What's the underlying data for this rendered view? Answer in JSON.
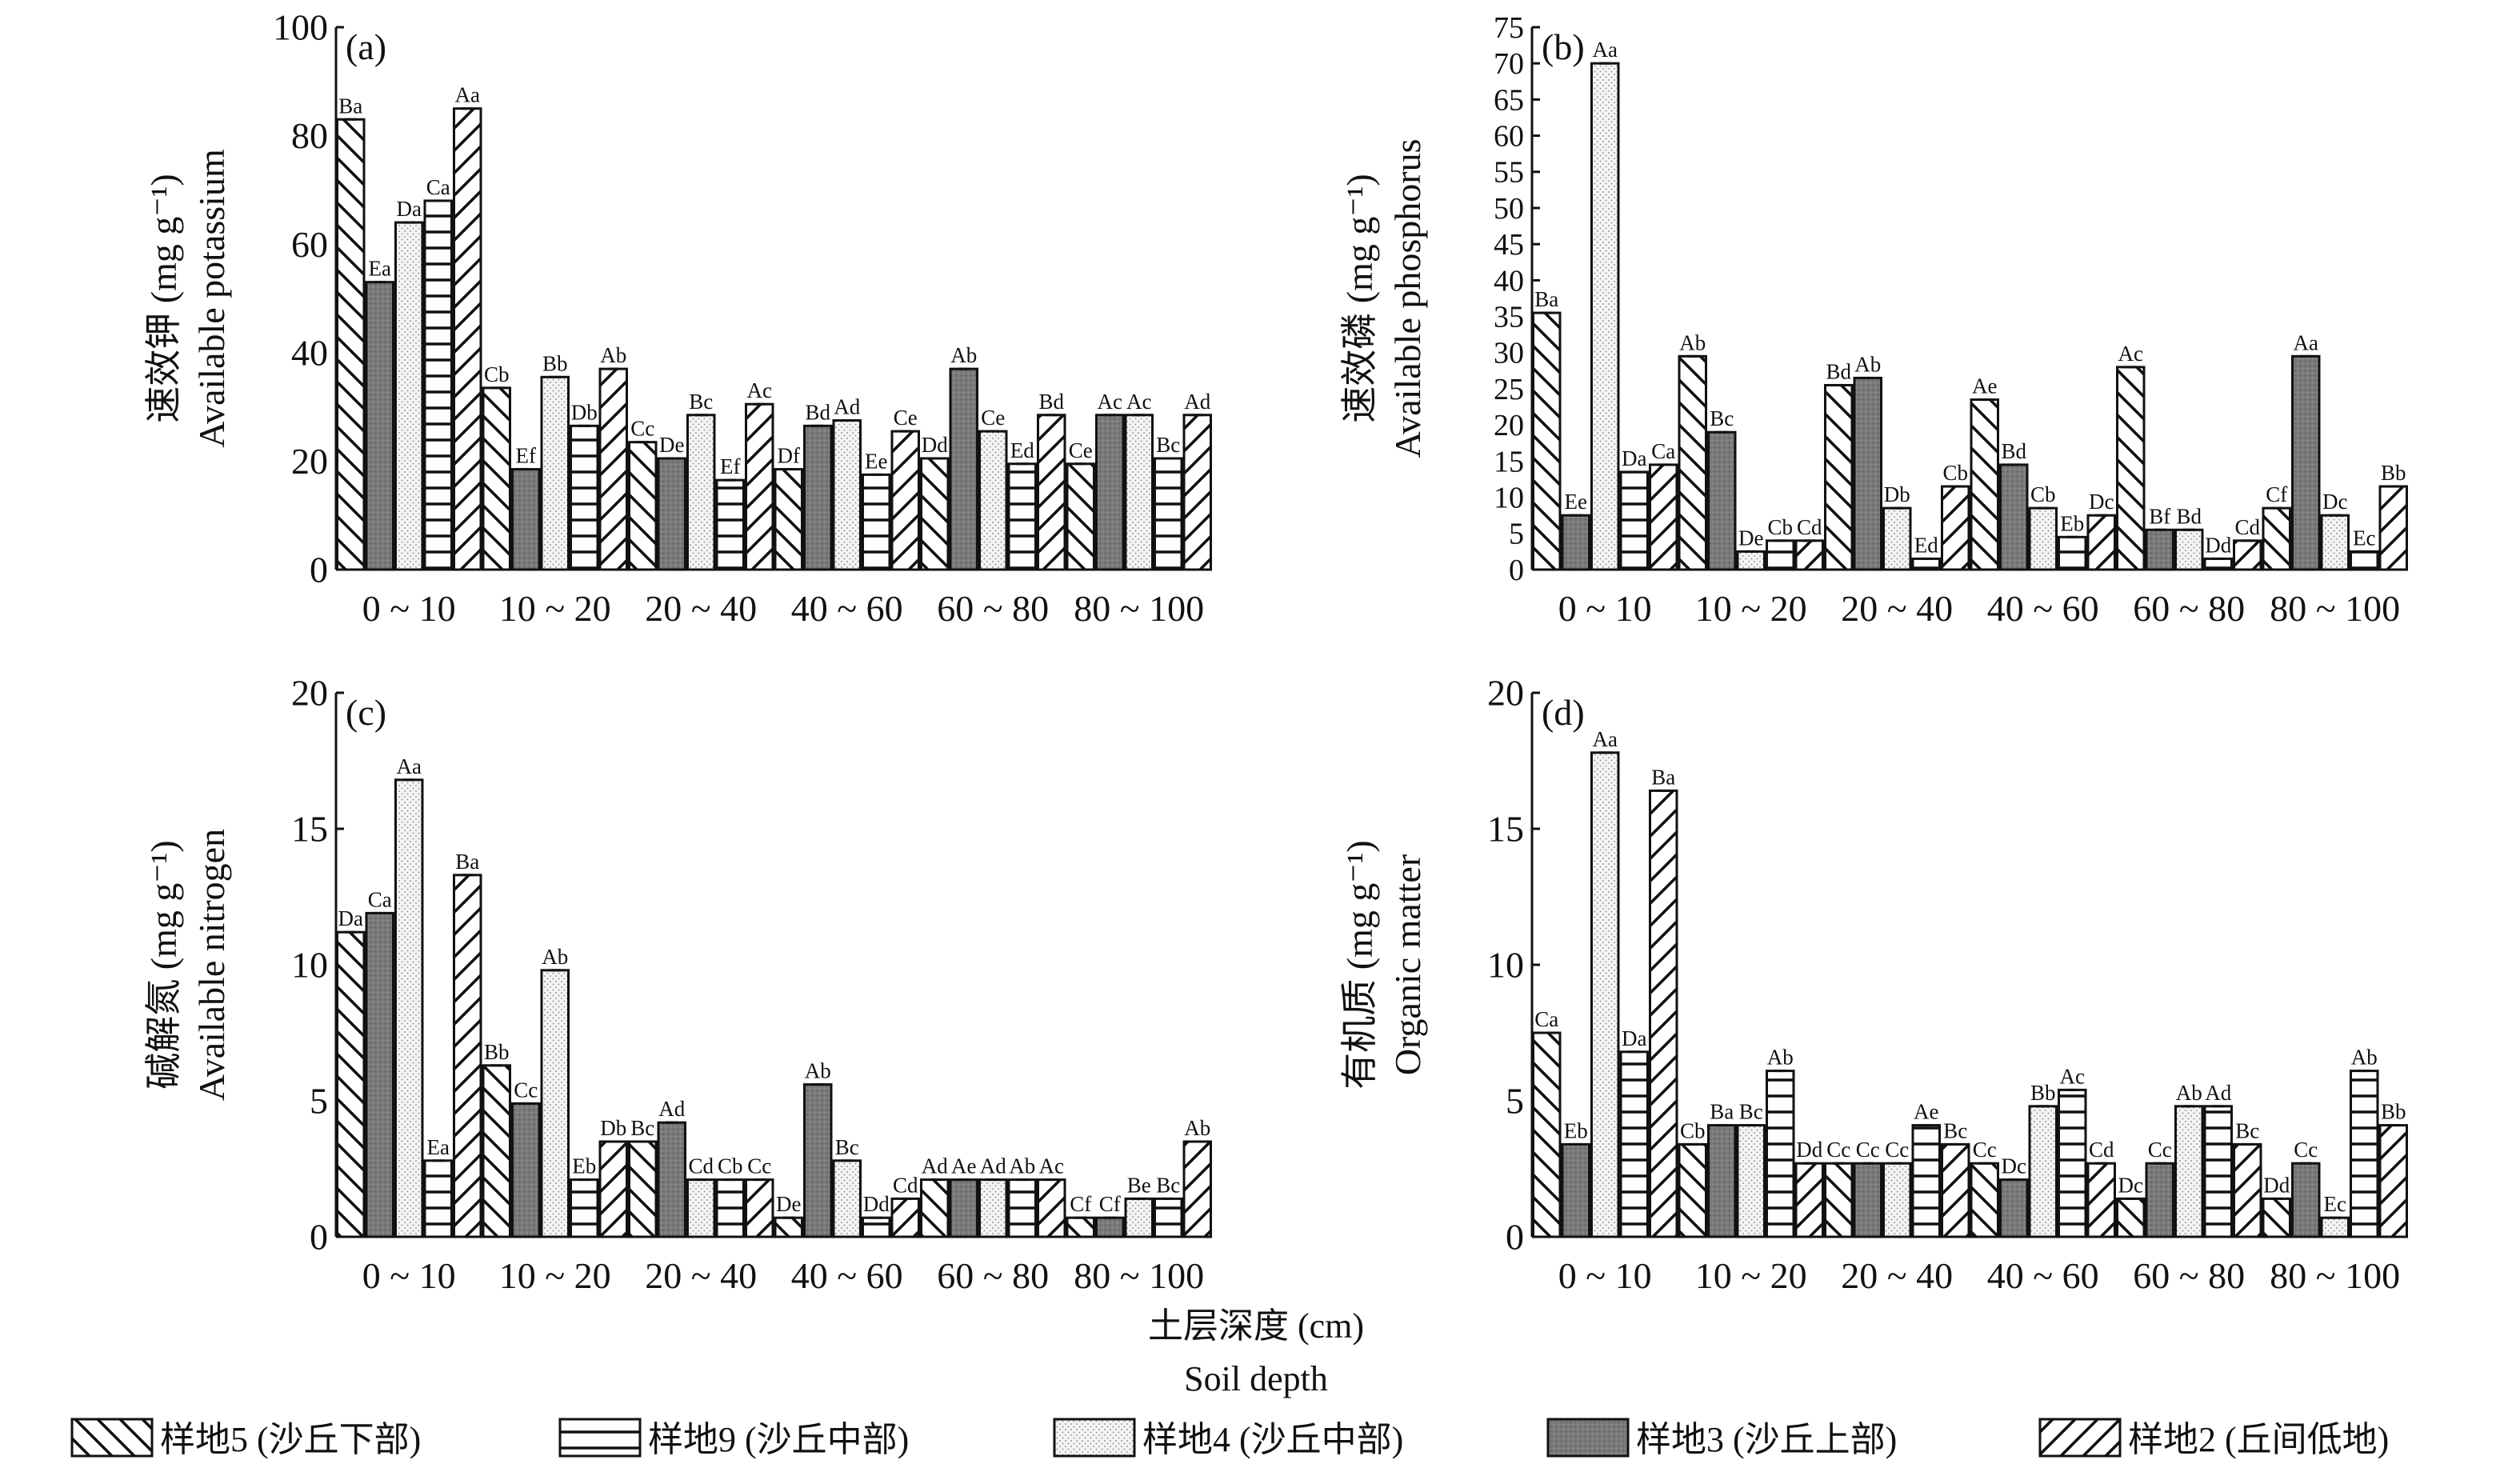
{
  "series_legend": [
    {
      "label": "样地5 (沙丘下部)",
      "pattern": "diagBack"
    },
    {
      "label": "样地9 (沙丘中部)",
      "pattern": "horiz"
    },
    {
      "label": "样地4 (沙丘中部)",
      "pattern": "dots"
    },
    {
      "label": "样地3 (沙丘上部)",
      "pattern": "dark"
    },
    {
      "label": "样地2 (丘间低地)",
      "pattern": "diagFwd"
    }
  ],
  "series_order": [
    "样地5",
    "样地3",
    "样地4",
    "样地9",
    "样地2"
  ],
  "shared_xlabel": {
    "zh": "土层深度 (cm)",
    "en": "Soil depth"
  },
  "colors": {
    "axis": "#111111",
    "dark_fill": "#7a7a7a",
    "dot_fill": "#f2f2f2",
    "background": "#ffffff"
  },
  "chart_data": [
    {
      "type": "bar",
      "panel": "(a)",
      "ylabel_zh": "速效钾 (mg g⁻¹)",
      "ylabel_en": "Available potassium",
      "ylim": [
        0,
        100
      ],
      "yticks": [
        0,
        20,
        40,
        60,
        80,
        100
      ],
      "categories": [
        "0 ~ 10",
        "10 ~ 20",
        "20 ~ 40",
        "40 ~ 60",
        "60 ~ 80",
        "80 ~ 100"
      ],
      "series": [
        {
          "values": [
            83,
            33.5,
            23.5,
            18.5,
            20.5,
            19.5
          ],
          "labels": [
            "Ba",
            "Cb",
            "Cc",
            "Df",
            "Dd",
            "Ce"
          ]
        },
        {
          "values": [
            53,
            18.5,
            20.5,
            26.5,
            37,
            28.5
          ],
          "labels": [
            "Ea",
            "Ef",
            "De",
            "Bd",
            "Ab",
            "Ac"
          ]
        },
        {
          "values": [
            64,
            35.5,
            28.5,
            27.5,
            25.5,
            28.5
          ],
          "labels": [
            "Da",
            "Bb",
            "Bc",
            "Ad",
            "Ce",
            "Ac"
          ]
        },
        {
          "values": [
            68,
            26.5,
            16.5,
            17.5,
            19.5,
            20.5
          ],
          "labels": [
            "Ca",
            "Db",
            "Ef",
            "Ee",
            "Ed",
            "Bc"
          ]
        },
        {
          "values": [
            85,
            37,
            30.5,
            25.5,
            28.5,
            28.5
          ],
          "labels": [
            "Aa",
            "Ab",
            "Ac",
            "Ce",
            "Bd",
            "Ad"
          ]
        }
      ]
    },
    {
      "type": "bar",
      "panel": "(b)",
      "ylabel_zh": "速效磷 (mg g⁻¹)",
      "ylabel_en": "Available phosphorus",
      "ylim": [
        0,
        75
      ],
      "yticks": [
        0,
        5,
        10,
        15,
        20,
        25,
        30,
        35,
        40,
        45,
        50,
        55,
        60,
        65,
        70,
        75
      ],
      "categories": [
        "0 ~ 10",
        "10 ~ 20",
        "20 ~ 40",
        "40 ~ 60",
        "60 ~ 80",
        "80 ~ 100"
      ],
      "series": [
        {
          "values": [
            35.5,
            29.5,
            25.5,
            23.5,
            28,
            8.5
          ],
          "labels": [
            "Ba",
            "Ab",
            "Bd",
            "Ae",
            "Ac",
            "Cf"
          ]
        },
        {
          "values": [
            7.5,
            19,
            26.5,
            14.5,
            5.5,
            29.5
          ],
          "labels": [
            "Ee",
            "Bc",
            "Ab",
            "Bd",
            "Bf",
            "Aa"
          ]
        },
        {
          "values": [
            70,
            2.5,
            8.5,
            8.5,
            5.5,
            7.5
          ],
          "labels": [
            "Aa",
            "De",
            "Db",
            "Cb",
            "Bd",
            "Dc"
          ]
        },
        {
          "values": [
            13.5,
            4,
            1.5,
            4.5,
            1.5,
            2.5
          ],
          "labels": [
            "Da",
            "Cb",
            "Ed",
            "Eb",
            "Dd",
            "Ec"
          ]
        },
        {
          "values": [
            14.5,
            4,
            11.5,
            7.5,
            4,
            11.5
          ],
          "labels": [
            "Ca",
            "Cd",
            "Cb",
            "Dc",
            "Cd",
            "Bb"
          ]
        }
      ]
    },
    {
      "type": "bar",
      "panel": "(c)",
      "ylabel_zh": "碱解氮 (mg g⁻¹)",
      "ylabel_en": "Available nitrogen",
      "ylim": [
        0,
        20
      ],
      "yticks": [
        0,
        5,
        10,
        15,
        20
      ],
      "categories": [
        "0 ~ 10",
        "10 ~ 20",
        "20 ~ 40",
        "40 ~ 60",
        "60 ~ 80",
        "80 ~ 100"
      ],
      "series": [
        {
          "values": [
            11.2,
            6.3,
            3.5,
            0.7,
            2.1,
            0.7
          ],
          "labels": [
            "Da",
            "Bb",
            "Bc",
            "De",
            "Ad",
            "Cf"
          ]
        },
        {
          "values": [
            11.9,
            4.9,
            4.2,
            5.6,
            2.1,
            0.7
          ],
          "labels": [
            "Ca",
            "Cc",
            "Ad",
            "Ab",
            "Ae",
            "Cf"
          ]
        },
        {
          "values": [
            16.8,
            9.8,
            2.1,
            2.8,
            2.1,
            1.4
          ],
          "labels": [
            "Aa",
            "Ab",
            "Cd",
            "Bc",
            "Ad",
            "Be"
          ]
        },
        {
          "values": [
            2.8,
            2.1,
            2.1,
            0.7,
            2.1,
            1.4
          ],
          "labels": [
            "Ea",
            "Eb",
            "Cb",
            "Dd",
            "Ab",
            "Bc"
          ]
        },
        {
          "values": [
            13.3,
            3.5,
            2.1,
            1.4,
            2.1,
            3.5
          ],
          "labels": [
            "Ba",
            "Db",
            "Cc",
            "Cd",
            "Ac",
            "Ab"
          ]
        }
      ]
    },
    {
      "type": "bar",
      "panel": "(d)",
      "ylabel_zh": "有机质 (mg g⁻¹)",
      "ylabel_en": "Organic matter",
      "ylim": [
        0,
        20
      ],
      "yticks": [
        0,
        5,
        10,
        15,
        20
      ],
      "categories": [
        "0 ~ 10",
        "10 ~ 20",
        "20 ~ 40",
        "40 ~ 60",
        "60 ~ 80",
        "80 ~ 100"
      ],
      "series": [
        {
          "values": [
            7.5,
            3.4,
            2.7,
            2.7,
            1.4,
            1.4
          ],
          "labels": [
            "Ca",
            "Cb",
            "Cc",
            "Cc",
            "Dc",
            "Dd"
          ]
        },
        {
          "values": [
            3.4,
            4.1,
            2.7,
            2.1,
            2.7,
            2.7
          ],
          "labels": [
            "Eb",
            "Ba",
            "Cc",
            "Dc",
            "Cc",
            "Cc"
          ]
        },
        {
          "values": [
            17.8,
            4.1,
            2.7,
            4.8,
            4.8,
            0.7
          ],
          "labels": [
            "Aa",
            "Bc",
            "Cc",
            "Bb",
            "Ab",
            "Ec"
          ]
        },
        {
          "values": [
            6.8,
            6.1,
            4.1,
            5.4,
            4.8,
            6.1
          ],
          "labels": [
            "Da",
            "Ab",
            "Ae",
            "Ac",
            "Ad",
            "Ab"
          ]
        },
        {
          "values": [
            16.4,
            2.7,
            3.4,
            2.7,
            3.4,
            4.1
          ],
          "labels": [
            "Ba",
            "Dd",
            "Bc",
            "Cd",
            "Bc",
            "Bb"
          ]
        }
      ]
    }
  ]
}
